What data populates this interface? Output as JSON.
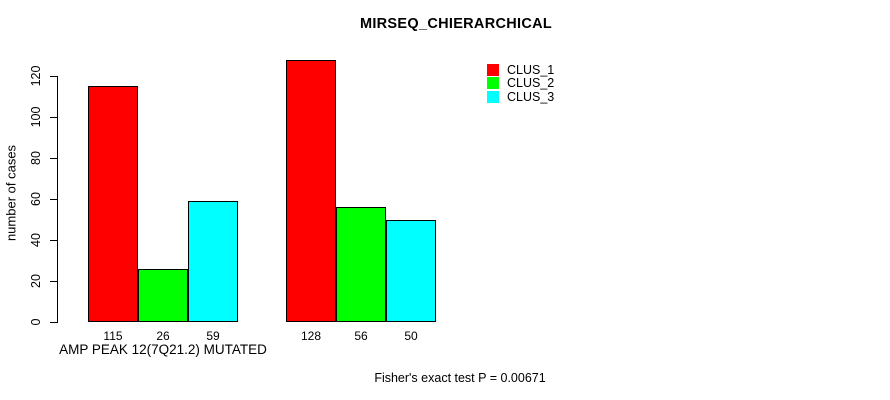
{
  "figure": {
    "title": "MIRSEQ_CHIERARCHICAL",
    "footer": "Fisher's exact test P = 0.00671"
  },
  "chart_data": {
    "type": "bar",
    "title": "MIRSEQ_CHIERARCHICAL",
    "xlabel": "",
    "ylabel": "number of cases",
    "ylim": [
      0,
      130
    ],
    "yticks": [
      0,
      20,
      40,
      60,
      80,
      100,
      120
    ],
    "grid": false,
    "legend_position": "top-right",
    "categories": [
      "AMP PEAK 12(7Q21.2) MUTATED",
      ""
    ],
    "series": [
      {
        "name": "CLUS_1",
        "color": "#ff0000",
        "values": [
          115,
          128
        ]
      },
      {
        "name": "CLUS_2",
        "color": "#00ff00",
        "values": [
          26,
          56
        ]
      },
      {
        "name": "CLUS_3",
        "color": "#00ffff",
        "values": [
          59,
          50
        ]
      }
    ],
    "bar_value_labels_shown": true,
    "annotation": "Fisher's exact test P = 0.00671"
  }
}
